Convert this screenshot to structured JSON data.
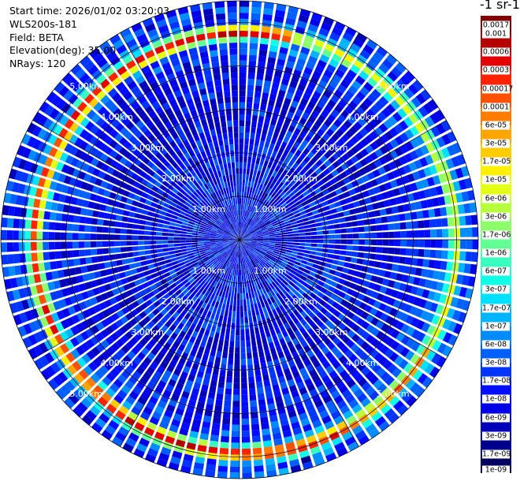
{
  "info": {
    "start_time": "Start time: 2026/01/02 03:20:03",
    "instrument": "WLS200s-181",
    "field": "Field: BETA",
    "elevation": "Elevation(deg): 35.00",
    "nrays": "NRays: 120"
  },
  "colorbar": {
    "title": "-1 sr-1",
    "labels": [
      "0.0017",
      "0.001",
      "0.0006",
      "0.0003",
      "0.00017",
      "0.0001",
      "6e-05",
      "3e-05",
      "1.7e-05",
      "1e-05",
      "6e-06",
      "3e-06",
      "1.7e-06",
      "1e-06",
      "6e-07",
      "3e-07",
      "1.7e-07",
      "1e-07",
      "6e-08",
      "3e-08",
      "1.7e-08",
      "1e-08",
      "6e-09",
      "3e-09",
      "1.7e-09",
      "1e-09"
    ],
    "colors": [
      "#800000",
      "#b40000",
      "#e40000",
      "#ff2200",
      "#ff5000",
      "#ff7c00",
      "#ffa500",
      "#ffcc00",
      "#fff000",
      "#e2ff15",
      "#b8ff3e",
      "#8cff6a",
      "#62ff94",
      "#38ffbe",
      "#10ffe6",
      "#00e0ff",
      "#00b4ff",
      "#008cff",
      "#0060ff",
      "#0034ff",
      "#000cff",
      "#0000e6",
      "#0000b8",
      "#00008c",
      "#000060"
    ]
  },
  "chart_data": {
    "type": "heatmap",
    "title": "",
    "projection": "polar PPI (plan position indicator)",
    "n_rays": 120,
    "elevation_deg": 35.0,
    "max_range_km": 5.5,
    "range_rings_km": [
      1,
      2,
      3,
      4,
      5
    ],
    "ring_labels": [
      "1.00km",
      "2.00km",
      "3.00km",
      "4.00km",
      "5.00km"
    ],
    "color_scale": "log",
    "vmin": 1e-09,
    "vmax": 0.0017,
    "layers": [
      {
        "description": "background noise",
        "range_km": [
          0,
          5.5
        ],
        "typical_value": 1.5e-08
      },
      {
        "description": "aerosol/cloud ring",
        "range_km": [
          4.6,
          5.1
        ],
        "peak_value": 0.0006
      },
      {
        "description": "inner weak ring",
        "range_km": [
          2.5,
          3.5
        ],
        "typical_value": 3e-09
      }
    ]
  }
}
